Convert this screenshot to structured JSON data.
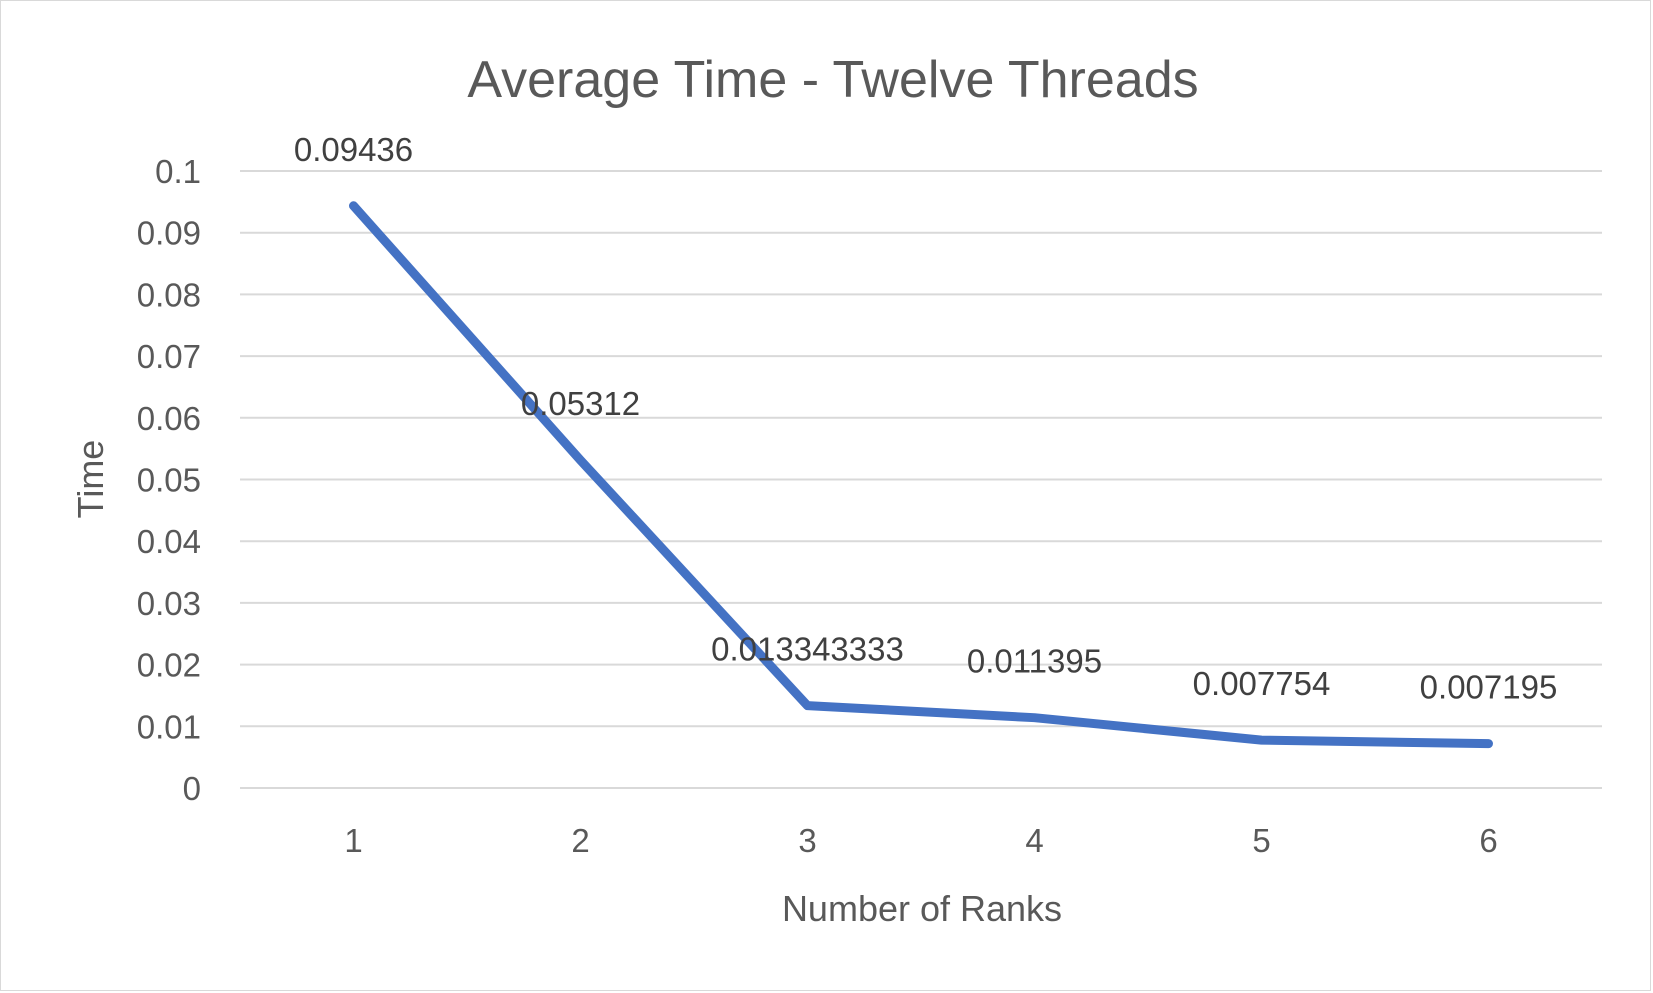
{
  "chart_data": {
    "type": "line",
    "title": "Average Time - Twelve Threads",
    "xlabel": "Number of Ranks",
    "ylabel": "Time",
    "categories": [
      "1",
      "2",
      "3",
      "4",
      "5",
      "6"
    ],
    "series": [
      {
        "values": [
          0.09436,
          0.05312,
          0.013343333,
          0.011395,
          0.007754,
          0.007195
        ],
        "labels": [
          "0.09436",
          "0.05312",
          "0.013343333",
          "0.011395",
          "0.007754",
          "0.007195"
        ],
        "color": "#4472c4"
      }
    ],
    "y_ticks": [
      "0",
      "0.01",
      "0.02",
      "0.03",
      "0.04",
      "0.05",
      "0.06",
      "0.07",
      "0.08",
      "0.09",
      "0.1"
    ],
    "ylim": [
      0,
      0.1
    ],
    "grid": true,
    "legend": "none"
  },
  "colors": {
    "line": "#4472c4",
    "grid": "#d9d9d9",
    "text": "#595959",
    "label": "#404040"
  }
}
